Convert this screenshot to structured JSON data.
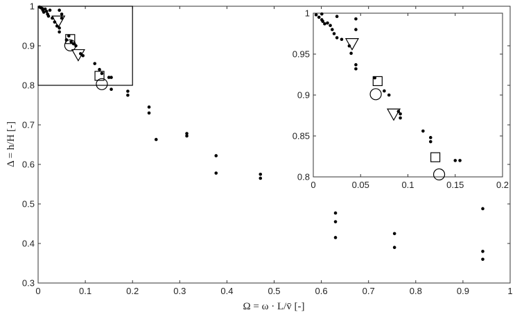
{
  "chart_data": [
    {
      "type": "scatter",
      "title": "",
      "xlabel": "Ω = ω · L/v̄ [-]",
      "ylabel": "Δ = h/H [-]",
      "xlim": [
        0,
        1
      ],
      "ylim": [
        0.3,
        1
      ],
      "xticks": [
        "0",
        "0.1",
        "0.2",
        "0.3",
        "0.4",
        "0.5",
        "0.6",
        "0.7",
        "0.8",
        "0.9",
        "1"
      ],
      "yticks": [
        "0.3",
        "0.4",
        "0.5",
        "0.6",
        "0.7",
        "0.8",
        "0.9",
        "1"
      ],
      "grid": false,
      "series": [
        {
          "marker": "dot",
          "points": [
            [
              0.003,
              0.998
            ],
            [
              0.006,
              0.996
            ],
            [
              0.009,
              0.994
            ],
            [
              0.01,
              0.99
            ],
            [
              0.012,
              0.985
            ],
            [
              0.015,
              0.993
            ],
            [
              0.018,
              0.987
            ],
            [
              0.02,
              0.98
            ],
            [
              0.022,
              0.975
            ],
            [
              0.025,
              0.99
            ],
            [
              0.03,
              0.97
            ],
            [
              0.035,
              0.96
            ],
            [
              0.04,
              0.95
            ],
            [
              0.045,
              0.945
            ],
            [
              0.045,
              0.99
            ],
            [
              0.045,
              0.935
            ],
            [
              0.05,
              0.98
            ],
            [
              0.05,
              0.97
            ],
            [
              0.06,
              0.915
            ],
            [
              0.065,
              0.925
            ],
            [
              0.07,
              0.91
            ],
            [
              0.075,
              0.905
            ],
            [
              0.08,
              0.9
            ],
            [
              0.09,
              0.88
            ],
            [
              0.095,
              0.875
            ],
            [
              0.12,
              0.855
            ],
            [
              0.13,
              0.84
            ],
            [
              0.135,
              0.83
            ],
            [
              0.15,
              0.82
            ],
            [
              0.155,
              0.82
            ],
            [
              0.155,
              0.79
            ],
            [
              0.19,
              0.785
            ],
            [
              0.19,
              0.775
            ],
            [
              0.235,
              0.745
            ],
            [
              0.235,
              0.73
            ],
            [
              0.25,
              0.663
            ],
            [
              0.315,
              0.678
            ],
            [
              0.315,
              0.672
            ],
            [
              0.377,
              0.622
            ],
            [
              0.377,
              0.578
            ],
            [
              0.471,
              0.575
            ],
            [
              0.471,
              0.565
            ],
            [
              0.63,
              0.477
            ],
            [
              0.63,
              0.455
            ],
            [
              0.63,
              0.415
            ],
            [
              0.755,
              0.425
            ],
            [
              0.755,
              0.39
            ],
            [
              0.942,
              0.488
            ],
            [
              0.942,
              0.38
            ],
            [
              0.942,
              0.36
            ]
          ]
        },
        {
          "marker": "triangle-down",
          "points": [
            [
              0.043,
              0.963
            ],
            [
              0.085,
              0.878
            ]
          ]
        },
        {
          "marker": "square",
          "points": [
            [
              0.068,
              0.917
            ],
            [
              0.13,
              0.824
            ]
          ]
        },
        {
          "marker": "circle",
          "points": [
            [
              0.068,
              0.901
            ],
            [
              0.135,
              0.803
            ]
          ]
        }
      ],
      "zoom_region": {
        "xlim": [
          0,
          0.2
        ],
        "ylim": [
          0.8,
          1
        ]
      }
    },
    {
      "type": "scatter",
      "title": "",
      "inset": true,
      "xlim": [
        0,
        0.2
      ],
      "ylim": [
        0.8,
        1
      ],
      "xticks": [
        "0",
        "0.05",
        "0.1",
        "0.15",
        "0.2"
      ],
      "yticks": [
        "0.8",
        "0.85",
        "0.9",
        "0.95",
        "1"
      ],
      "grid": false,
      "series": [
        {
          "marker": "dot",
          "points": [
            [
              0.003,
              0.998
            ],
            [
              0.006,
              0.995
            ],
            [
              0.009,
              0.992
            ],
            [
              0.009,
              0.999
            ],
            [
              0.01,
              0.99
            ],
            [
              0.012,
              0.987
            ],
            [
              0.015,
              0.988
            ],
            [
              0.018,
              0.985
            ],
            [
              0.02,
              0.98
            ],
            [
              0.022,
              0.975
            ],
            [
              0.025,
              0.97
            ],
            [
              0.025,
              0.996
            ],
            [
              0.03,
              0.968
            ],
            [
              0.038,
              0.96
            ],
            [
              0.04,
              0.951
            ],
            [
              0.045,
              0.993
            ],
            [
              0.045,
              0.98
            ],
            [
              0.045,
              0.937
            ],
            [
              0.045,
              0.932
            ],
            [
              0.065,
              0.921
            ],
            [
              0.075,
              0.905
            ],
            [
              0.08,
              0.9
            ],
            [
              0.09,
              0.88
            ],
            [
              0.092,
              0.877
            ],
            [
              0.092,
              0.872
            ],
            [
              0.116,
              0.856
            ],
            [
              0.124,
              0.848
            ],
            [
              0.124,
              0.843
            ],
            [
              0.15,
              0.82
            ],
            [
              0.155,
              0.82
            ]
          ]
        },
        {
          "marker": "triangle-down",
          "points": [
            [
              0.041,
              0.963
            ],
            [
              0.085,
              0.877
            ]
          ]
        },
        {
          "marker": "square",
          "points": [
            [
              0.068,
              0.917
            ],
            [
              0.129,
              0.824
            ]
          ]
        },
        {
          "marker": "circle",
          "points": [
            [
              0.066,
              0.901
            ],
            [
              0.133,
              0.803
            ]
          ]
        }
      ]
    }
  ]
}
